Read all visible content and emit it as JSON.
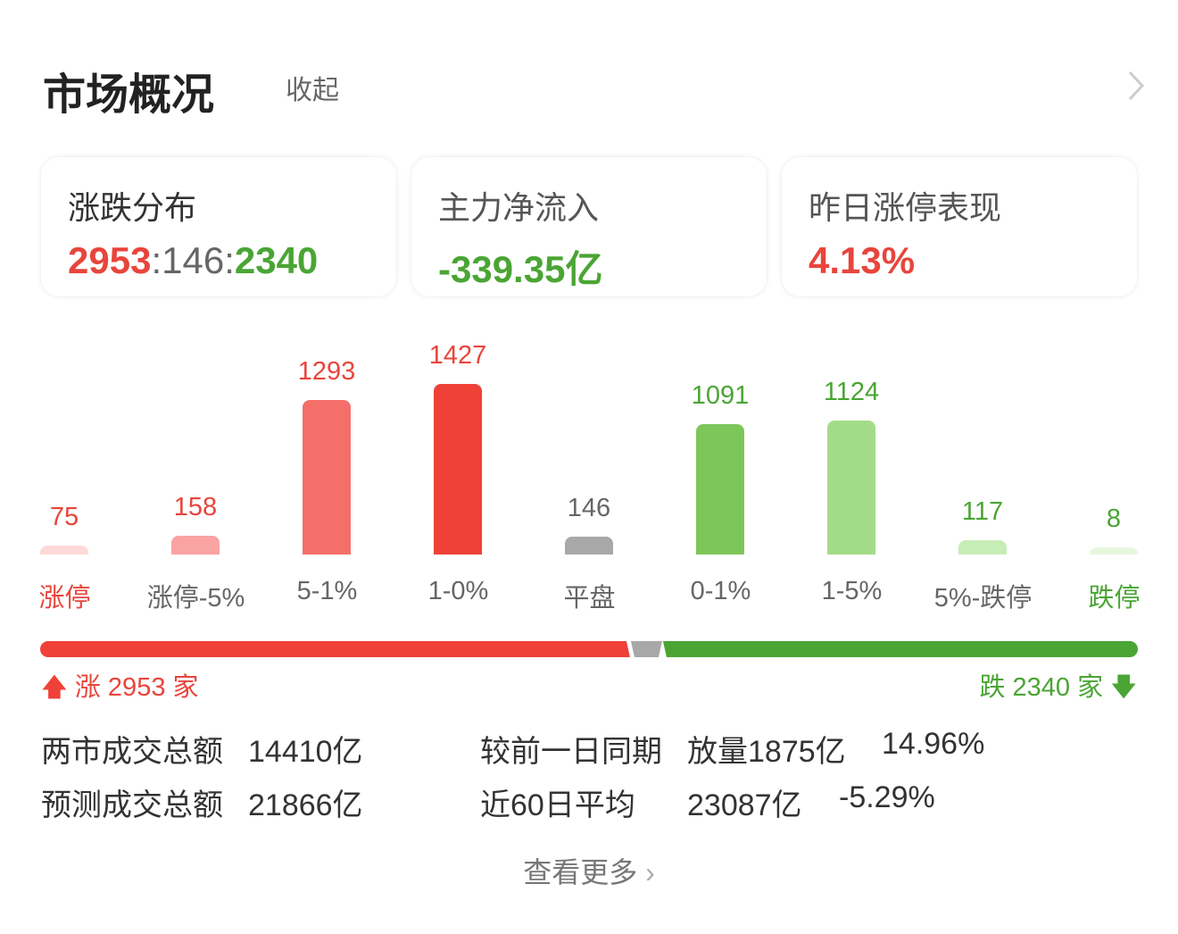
{
  "header": {
    "title": "市场概况",
    "collapse_label": "收起"
  },
  "cards": [
    {
      "label": "涨跌分布",
      "up": "2953",
      "flat": "146",
      "down": "2340",
      "sep": ":"
    },
    {
      "label": "主力净流入",
      "value": "-339.35亿"
    },
    {
      "label": "昨日涨停表现",
      "value": "4.13%"
    }
  ],
  "chart_data": {
    "type": "bar",
    "categories": [
      "涨停",
      "涨停-5%",
      "5-1%",
      "1-0%",
      "平盘",
      "0-1%",
      "1-5%",
      "5%-跌停",
      "跌停"
    ],
    "values": [
      75,
      158,
      1293,
      1427,
      146,
      1091,
      1124,
      117,
      8
    ],
    "colors": [
      "#fdd9d8",
      "#f9a3a3",
      "#f46e6a",
      "#ef4138",
      "#a8a8a8",
      "#7dc65a",
      "#a3dc88",
      "#c7edb6",
      "#e6f7de"
    ],
    "label_colors": [
      "#e8453c",
      "#e8453c",
      "#e8453c",
      "#e8453c",
      "#666666",
      "#4aa534",
      "#4aa534",
      "#4aa534",
      "#4aa534"
    ],
    "category_colors": [
      "#e8453c",
      "#666666",
      "#666666",
      "#666666",
      "#666666",
      "#666666",
      "#666666",
      "#666666",
      "#4aa534"
    ]
  },
  "breadth": {
    "up": 2953,
    "flat": 146,
    "down": 2340,
    "up_label": "涨 2953 家",
    "down_label": "跌 2340 家",
    "up_color": "#ef4138",
    "flat_color": "#a8a8a8",
    "down_color": "#4aa534"
  },
  "stats": {
    "total_label": "两市成交总额",
    "total_value": "14410亿",
    "forecast_label": "预测成交总额",
    "forecast_value": "21866亿",
    "compare_label": "较前一日同期",
    "compare_value": "放量1875亿",
    "compare_pct": "14.96%",
    "avg_label": "近60日平均",
    "avg_value": "23087亿",
    "avg_pct": "-5.29%"
  },
  "footer": {
    "more_label": "查看更多"
  }
}
